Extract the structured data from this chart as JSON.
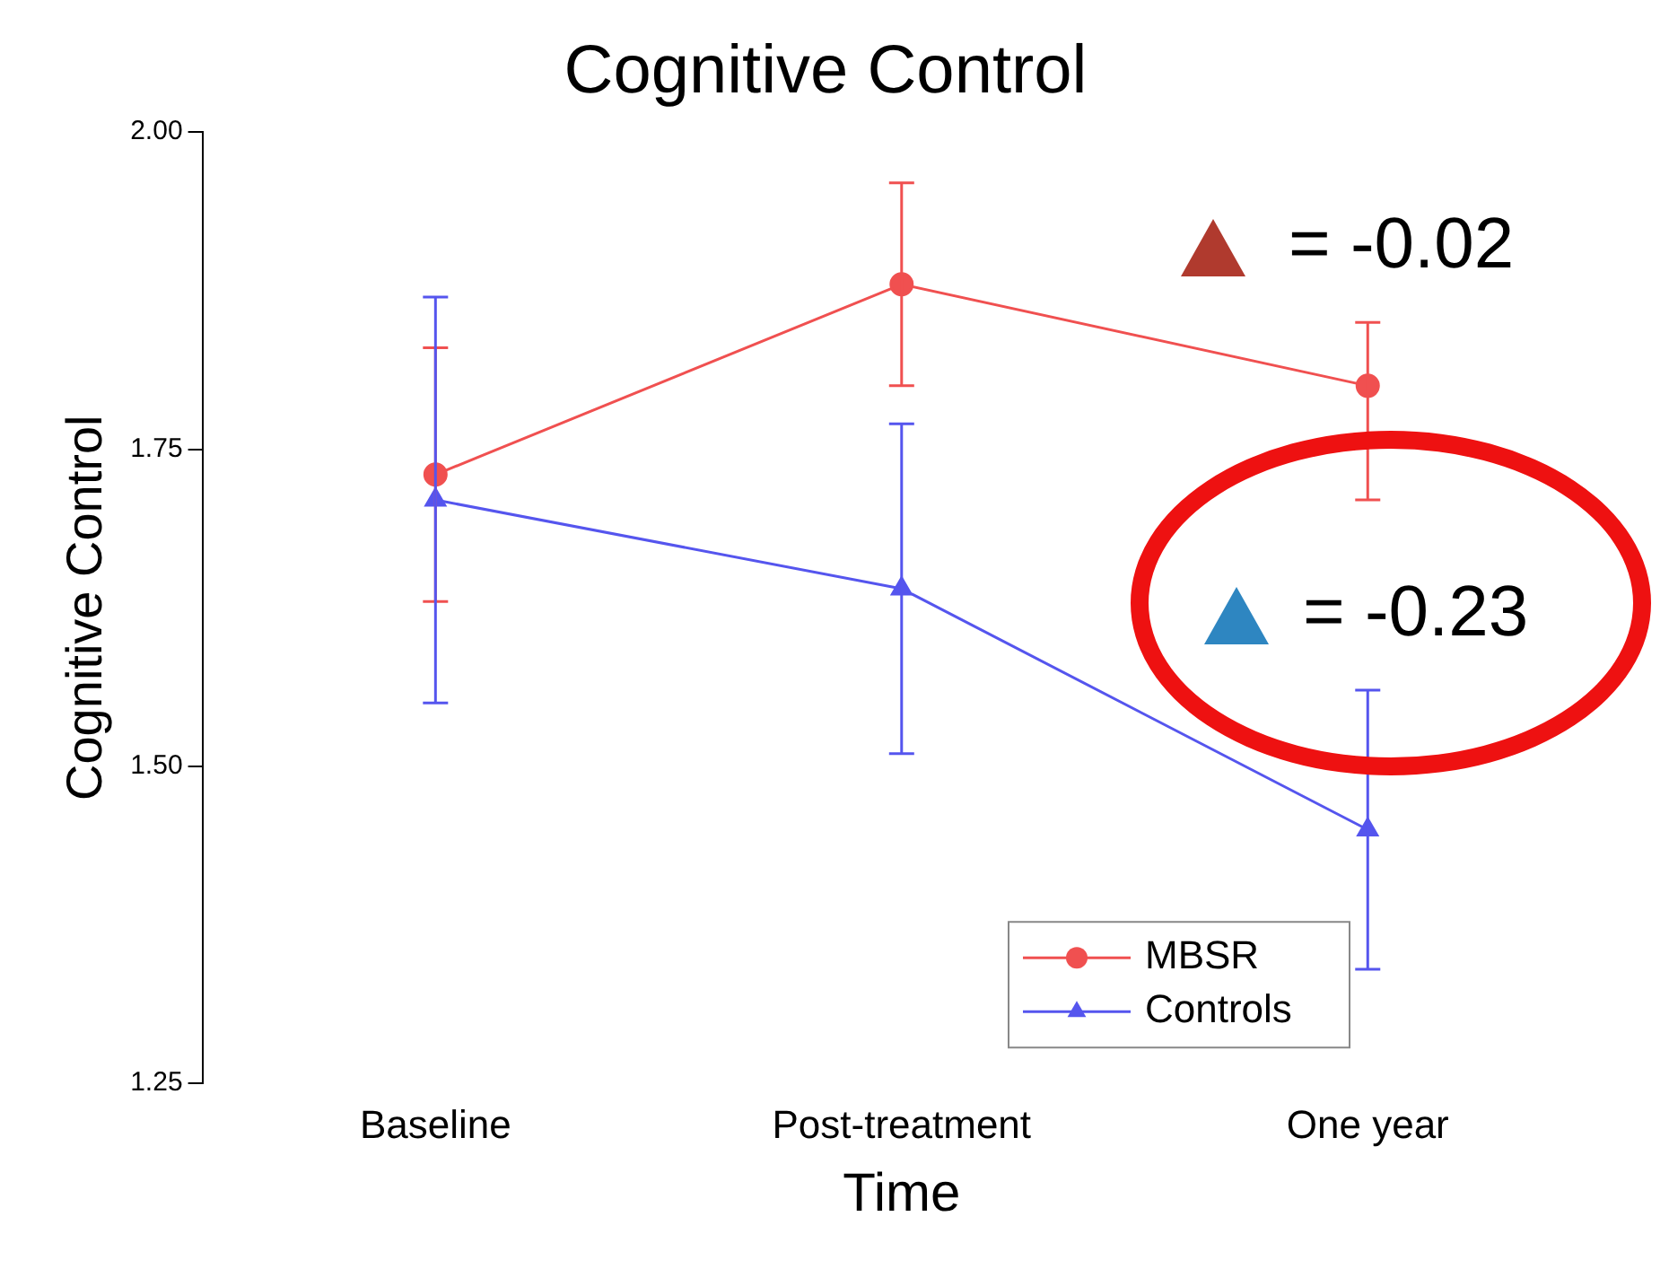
{
  "chart_data": {
    "type": "line",
    "title": "Cognitive Control",
    "xlabel": "Time",
    "ylabel": "Cognitive Control",
    "categories": [
      "Baseline",
      "Post-treatment",
      "One year"
    ],
    "series": [
      {
        "name": "MBSR",
        "color": "#f05050",
        "marker": "circle",
        "values": [
          1.73,
          1.88,
          1.8
        ],
        "errors": [
          [
            1.63,
            1.83
          ],
          [
            1.8,
            1.96
          ],
          [
            1.71,
            1.85
          ]
        ]
      },
      {
        "name": "Controls",
        "color": "#5555ee",
        "marker": "triangle",
        "values": [
          1.71,
          1.64,
          1.45
        ],
        "errors": [
          [
            1.55,
            1.87
          ],
          [
            1.51,
            1.77
          ],
          [
            1.34,
            1.56
          ]
        ]
      }
    ],
    "ylim": [
      1.25,
      2.0
    ],
    "yticks": [
      {
        "value": 1.25,
        "label": "1.25"
      },
      {
        "value": 1.5,
        "label": "1.50"
      },
      {
        "value": 1.75,
        "label": "1.75"
      },
      {
        "value": 2.0,
        "label": "2.00"
      }
    ],
    "legend": "bottom right",
    "grid": false,
    "line_style": "solid",
    "annotations": [
      "= -0.02",
      "= -0.23"
    ]
  }
}
